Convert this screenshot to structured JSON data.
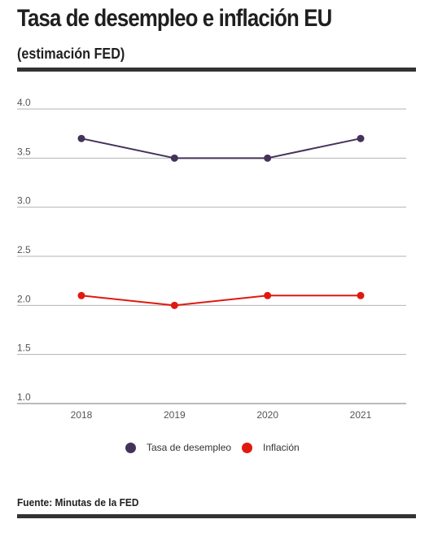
{
  "header": {
    "title": "Tasa de desempleo e inflación EU",
    "subtitle": "(estimación FED)"
  },
  "footer": {
    "source": "Fuente: Minutas de la FED"
  },
  "colors": {
    "unemployment": "#45325a",
    "inflation": "#e0190f",
    "grid": "#b3b3b3",
    "axis": "#777777",
    "rule": "#333333"
  },
  "chart_data": {
    "type": "line",
    "title": "Tasa de desempleo e inflación EU",
    "subtitle": "(estimación FED)",
    "xlabel": "",
    "ylabel": "",
    "categories": [
      "2018",
      "2019",
      "2020",
      "2021"
    ],
    "ylim": [
      1.0,
      4.0
    ],
    "yticks": [
      "1.0",
      "1.5",
      "2.0",
      "2.5",
      "3.0",
      "3.5",
      "4.0"
    ],
    "grid": true,
    "legend_position": "bottom",
    "series": [
      {
        "name": "Tasa de desempleo",
        "values": [
          3.7,
          3.5,
          3.5,
          3.7
        ]
      },
      {
        "name": "Inflación",
        "values": [
          2.1,
          2.0,
          2.1,
          2.1
        ]
      }
    ]
  }
}
